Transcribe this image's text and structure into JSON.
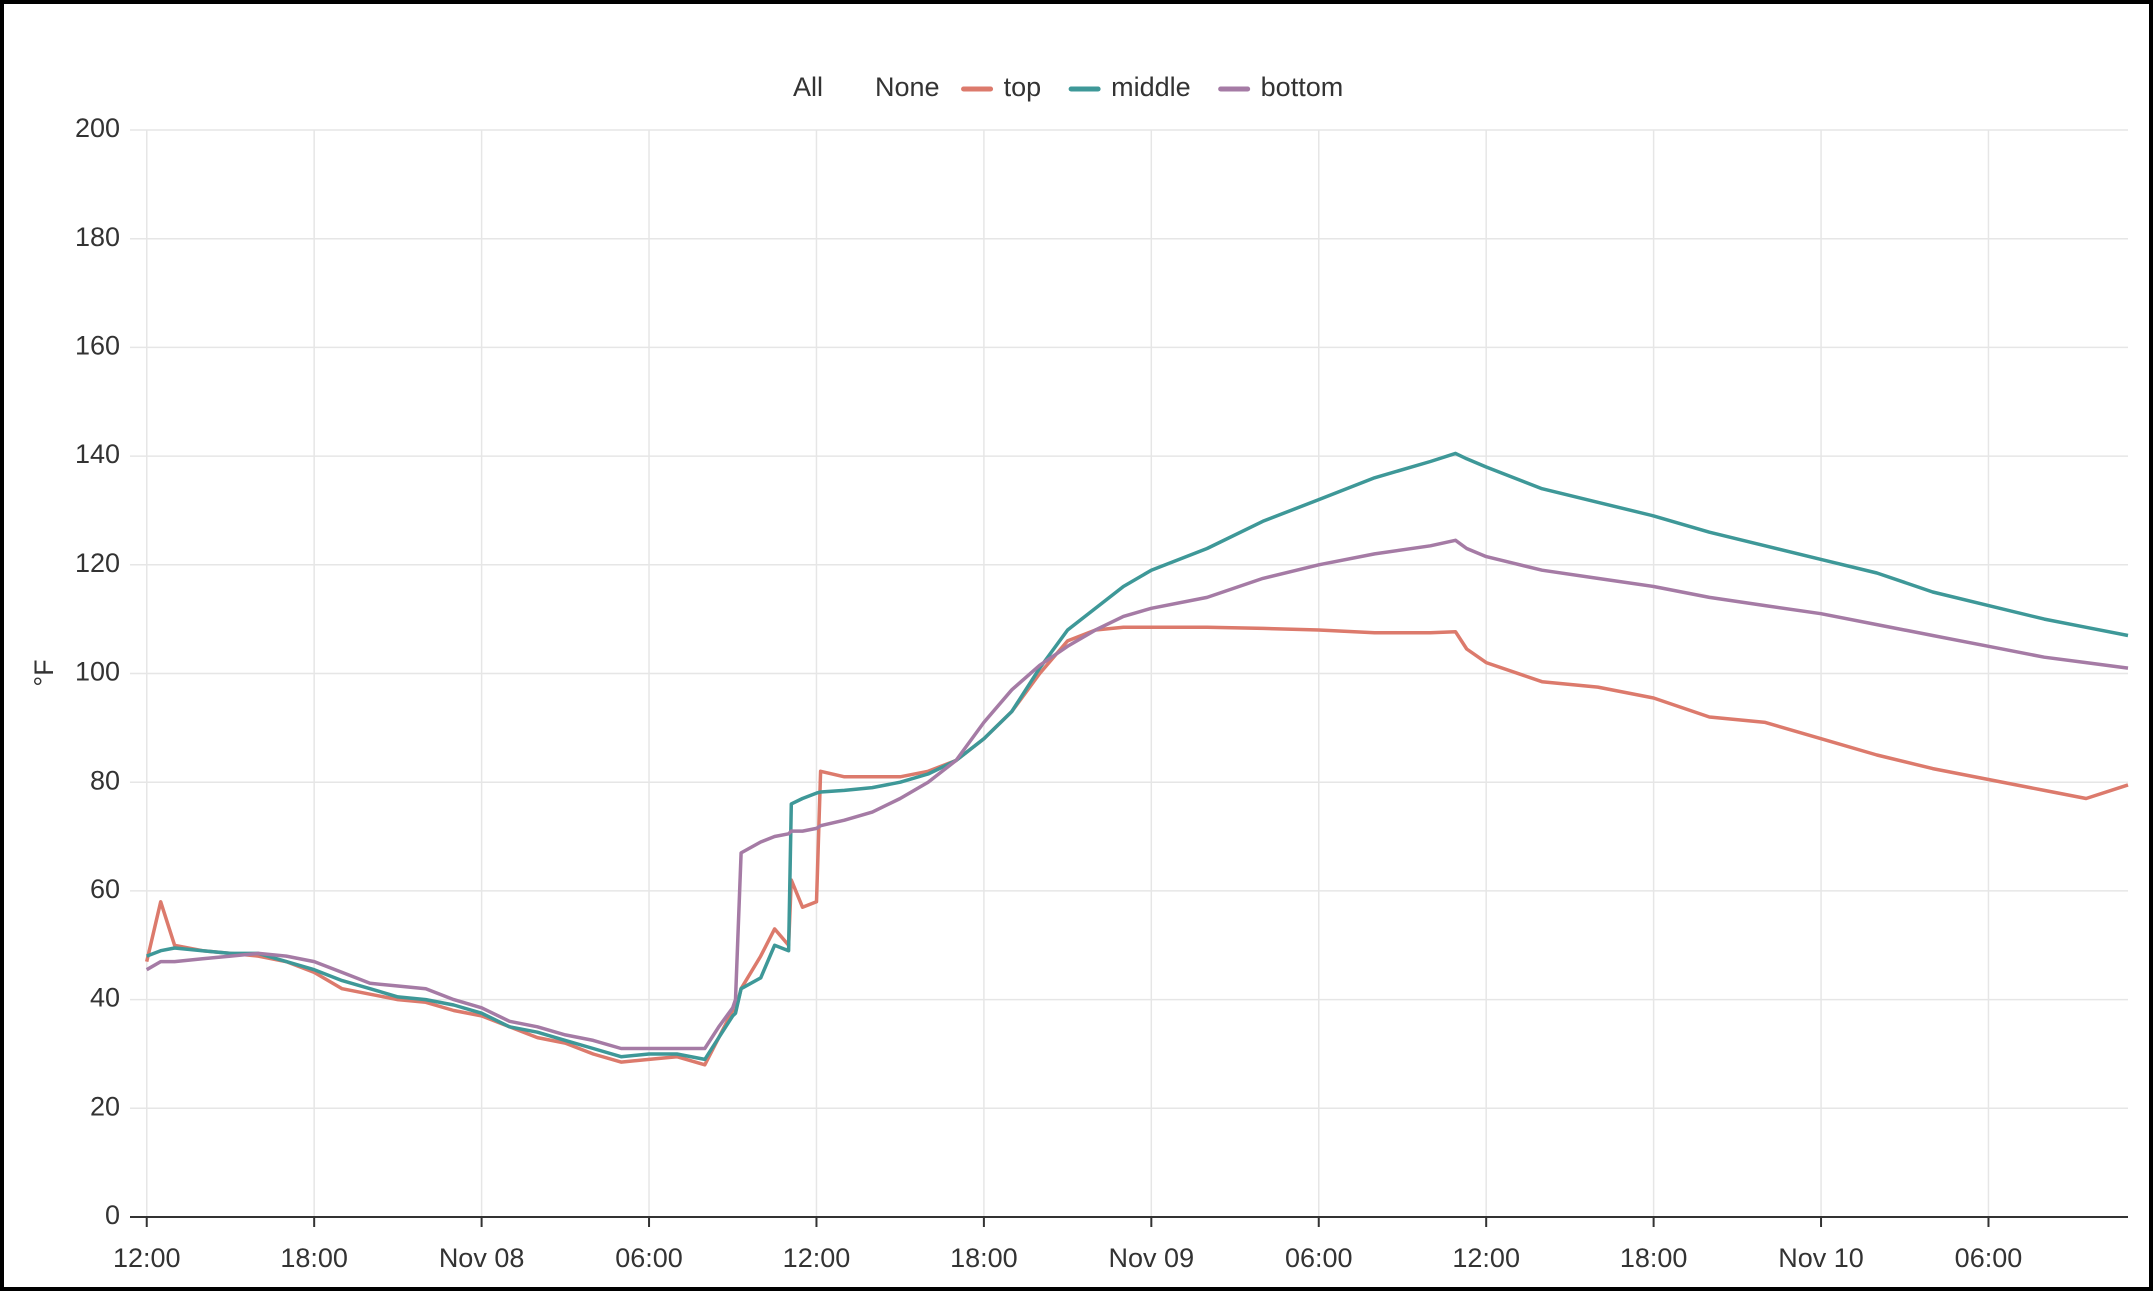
{
  "chart_data": {
    "type": "line",
    "y_label": "°F",
    "legend_controls": [
      "All",
      "None"
    ],
    "grid": true,
    "xlim": [
      -0.6,
      71
    ],
    "ylim": [
      0,
      200
    ],
    "yticks": [
      0,
      20,
      40,
      60,
      80,
      100,
      120,
      140,
      160,
      180,
      200
    ],
    "xticks": [
      {
        "value": 0,
        "label": "12:00"
      },
      {
        "value": 6,
        "label": "18:00"
      },
      {
        "value": 12,
        "label": "Nov 08"
      },
      {
        "value": 18,
        "label": "06:00"
      },
      {
        "value": 24,
        "label": "12:00"
      },
      {
        "value": 30,
        "label": "18:00"
      },
      {
        "value": 36,
        "label": "Nov 09"
      },
      {
        "value": 42,
        "label": "06:00"
      },
      {
        "value": 48,
        "label": "12:00"
      },
      {
        "value": 54,
        "label": "18:00"
      },
      {
        "value": 60,
        "label": "Nov 10"
      },
      {
        "value": 66,
        "label": "06:00"
      }
    ],
    "x": [
      0,
      0.5,
      1,
      2,
      3,
      4,
      5,
      6,
      7,
      8,
      9,
      10,
      11,
      12,
      13,
      14,
      15,
      16,
      17,
      18,
      19,
      20,
      20.5,
      21,
      21.1,
      21.3,
      22,
      22.5,
      23,
      23.1,
      23.5,
      24,
      24.15,
      25,
      26,
      27,
      28,
      29,
      30,
      31,
      32,
      33,
      34,
      35,
      36,
      38,
      40,
      42,
      44,
      46,
      46.9,
      47.3,
      48,
      50,
      52,
      54,
      56,
      58,
      60,
      62,
      64,
      66,
      68,
      69.5,
      71
    ],
    "series": [
      {
        "name": "top",
        "color": "#dc7a6c",
        "values": [
          47,
          58,
          50,
          49,
          48.5,
          48,
          47,
          45,
          42,
          41,
          40,
          39.5,
          38,
          37,
          35,
          33,
          32,
          30,
          28.5,
          29,
          29.5,
          28,
          33,
          38,
          38,
          42,
          48,
          53,
          50,
          62,
          57,
          58,
          82,
          81,
          81,
          81,
          82,
          84,
          88,
          93,
          100,
          106,
          108,
          108.5,
          108.5,
          108.5,
          108.3,
          108,
          107.5,
          107.5,
          107.7,
          104.5,
          102,
          98.5,
          97.5,
          95.5,
          92,
          91,
          88,
          85,
          82.5,
          80.5,
          78.5,
          77,
          79.5
        ]
      },
      {
        "name": "middle",
        "color": "#3e9898",
        "values": [
          48,
          49,
          49.5,
          49,
          48.5,
          48.5,
          47,
          45.5,
          43.5,
          42,
          40.5,
          40,
          39,
          37.5,
          35,
          34,
          32.5,
          31,
          29.5,
          30,
          30,
          29,
          33,
          37,
          37.5,
          42,
          44,
          50,
          49,
          76,
          77,
          78,
          78.2,
          78.5,
          79,
          80,
          81.5,
          84,
          88,
          93,
          101,
          108,
          112,
          116,
          119,
          123,
          128,
          132,
          136,
          139,
          140.5,
          139.5,
          138,
          134,
          131.5,
          129,
          126,
          123.5,
          121,
          118.5,
          115,
          112.5,
          110,
          108.5,
          107
        ]
      },
      {
        "name": "bottom",
        "color": "#a57ba5",
        "values": [
          45.5,
          47,
          47,
          47.5,
          48,
          48.5,
          48,
          47,
          45,
          43,
          42.5,
          42,
          40,
          38.5,
          36,
          35,
          33.5,
          32.5,
          31,
          31,
          31,
          31,
          35,
          38.5,
          40,
          67,
          69,
          70,
          70.5,
          71,
          71,
          71.5,
          72,
          73,
          74.5,
          77,
          80,
          84,
          91,
          97,
          101.5,
          105,
          108,
          110.5,
          112,
          114,
          117.5,
          120,
          122,
          123.5,
          124.5,
          123,
          121.5,
          119,
          117.5,
          116,
          114,
          112.5,
          111,
          109,
          107,
          105,
          103,
          102,
          101
        ]
      }
    ]
  }
}
